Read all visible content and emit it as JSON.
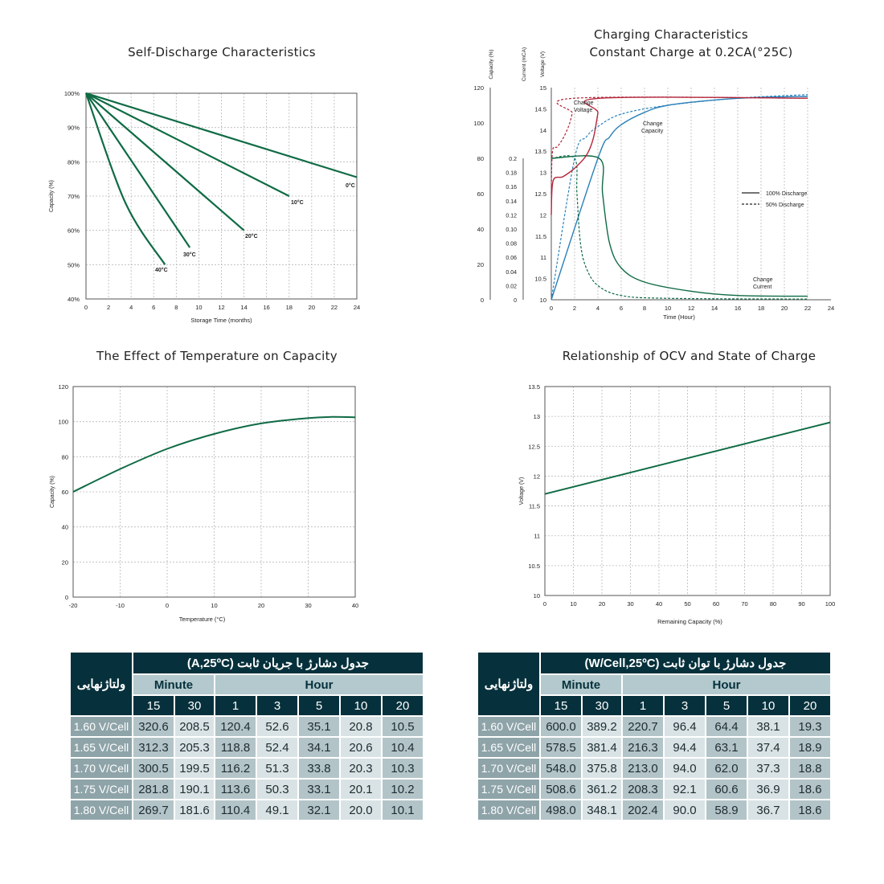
{
  "colors": {
    "green": "#0f6b45",
    "blue": "#2a80b9",
    "red": "#b3263a",
    "navy": "#06313c"
  },
  "charts": [
    {
      "title": "Self-Discharge Characteristics",
      "type": "line",
      "xlabel": "Storage Time (months)",
      "ylabel": "Capacity (%)",
      "xlim": [
        0,
        24
      ],
      "ylim": [
        40,
        100
      ],
      "xticks": [
        "0",
        "2",
        "4",
        "6",
        "8",
        "10",
        "12",
        "14",
        "16",
        "18",
        "20",
        "22",
        "24"
      ],
      "yticks": [
        "40%",
        "50%",
        "60%",
        "70%",
        "80%",
        "90%",
        "100%"
      ],
      "grid": true,
      "series": [
        {
          "name": "0°C",
          "x": [
            0,
            24
          ],
          "y": [
            100,
            75.5
          ]
        },
        {
          "name": "10°C",
          "x": [
            0,
            18
          ],
          "y": [
            100,
            70
          ]
        },
        {
          "name": "20°C",
          "x": [
            0,
            14
          ],
          "y": [
            100,
            60
          ]
        },
        {
          "name": "30°C",
          "x": [
            0,
            9.2
          ],
          "y": [
            100,
            55
          ]
        },
        {
          "name": "40°C",
          "x": [
            0,
            3.5,
            7
          ],
          "y": [
            100,
            68,
            50
          ]
        }
      ]
    },
    {
      "title_line1": "Charging Characteristics",
      "title_line2": "Constant Charge at 0.2CA(°25C)",
      "type": "line",
      "xlabel": "Time (Hour)",
      "axis_capacity_label": "Capacity (%)",
      "axis_current_label": "Current (mCA)",
      "axis_voltage_label": "Voltage (V)",
      "xlim": [
        0,
        24
      ],
      "xticks": [
        "0",
        "2",
        "4",
        "6",
        "8",
        "10",
        "12",
        "14",
        "16",
        "18",
        "20",
        "22",
        "24"
      ],
      "capacity_ticks": [
        "0",
        "20",
        "40",
        "60",
        "80",
        "100",
        "120"
      ],
      "current_ticks": [
        "0",
        "0.02",
        "0.04",
        "0.06",
        "0.08",
        "0.10",
        "0.12",
        "0.14",
        "0.16",
        "0.18",
        "0.2"
      ],
      "voltage_ticks": [
        "10",
        "10.5",
        "11",
        "11.5",
        "12",
        "12.5",
        "13",
        "13.5",
        "14",
        "14.5",
        "15"
      ],
      "legend_solid": "100% Discharge",
      "legend_dashed": "50% Discharge",
      "label_voltage": [
        "Change",
        "Voltage"
      ],
      "label_capacity": [
        "Change",
        "Capacity"
      ],
      "label_current": [
        "Change",
        "Current"
      ],
      "series": {
        "voltage_100": {
          "x": [
            0,
            0.15,
            1,
            2,
            3,
            3.6,
            4,
            4.2,
            22
          ],
          "y": [
            12.0,
            12.8,
            12.9,
            13.1,
            13.4,
            13.8,
            14.4,
            14.75,
            14.75
          ]
        },
        "voltage_50": {
          "x": [
            0,
            0.1,
            0.5,
            1,
            1.5,
            1.8,
            2.0,
            22
          ],
          "y": [
            12.5,
            13.5,
            13.6,
            13.8,
            14.1,
            14.4,
            14.75,
            14.75
          ]
        },
        "capacity_100": {
          "x": [
            0,
            4,
            5,
            6,
            8,
            10,
            14,
            18,
            22
          ],
          "y": [
            0,
            80,
            92,
            99,
            106,
            110,
            113,
            114.5,
            115
          ]
        },
        "capacity_50": {
          "x": [
            0,
            2,
            3,
            4,
            6,
            10,
            16,
            22
          ],
          "y": [
            0,
            80,
            92,
            98,
            105,
            110,
            114,
            116
          ]
        },
        "current_100": {
          "x": [
            0,
            4.1,
            4.4,
            5,
            6,
            8,
            12,
            16,
            22
          ],
          "y": [
            0.2,
            0.2,
            0.15,
            0.08,
            0.045,
            0.025,
            0.012,
            0.006,
            0.005
          ]
        },
        "current_50": {
          "x": [
            0,
            2.0,
            2.2,
            2.5,
            3,
            4,
            6,
            10,
            22
          ],
          "y": [
            0.2,
            0.2,
            0.15,
            0.08,
            0.045,
            0.02,
            0.006,
            0.002,
            0.001
          ]
        }
      }
    },
    {
      "title": "The Effect of Temperature on Capacity",
      "type": "line",
      "xlabel": "Temperature (°C)",
      "ylabel": "Capacity (%)",
      "xlim": [
        -20,
        40
      ],
      "ylim": [
        0,
        120
      ],
      "xticks": [
        "-20",
        "-10",
        "0",
        "10",
        "20",
        "30",
        "40"
      ],
      "yticks": [
        "0",
        "20",
        "40",
        "60",
        "80",
        "100",
        "120"
      ],
      "series": [
        {
          "x": [
            -20,
            -10,
            0,
            10,
            20,
            30,
            35,
            40
          ],
          "y": [
            60,
            73,
            84.5,
            93,
            99,
            102,
            102.7,
            102.5
          ]
        }
      ]
    },
    {
      "title": "Relationship of OCV and State of Charge",
      "type": "line",
      "xlabel": "Remaining Capacity (%)",
      "ylabel": "Voltage (V)",
      "xlim": [
        0,
        100
      ],
      "ylim": [
        10,
        13.5
      ],
      "xticks": [
        "0",
        "10",
        "20",
        "30",
        "40",
        "50",
        "60",
        "70",
        "80",
        "90",
        "100"
      ],
      "yticks": [
        "10",
        "10.5",
        "11",
        "11.5",
        "12",
        "12.5",
        "13",
        "13.5"
      ],
      "series": [
        {
          "x": [
            0,
            100
          ],
          "y": [
            11.7,
            12.9
          ]
        }
      ]
    }
  ],
  "tables": [
    {
      "title": "جدول دشارژ با جریان ثابت  (A,25ºC)",
      "corner": "ولتاژنهایی",
      "group_minute": "Minute",
      "group_hour": "Hour",
      "columns": [
        "15",
        "30",
        "1",
        "3",
        "5",
        "10",
        "20"
      ],
      "rows": [
        {
          "label": "1.60 V/Cell",
          "values": [
            "320.6",
            "208.5",
            "120.4",
            "52.6",
            "35.1",
            "20.8",
            "10.5"
          ]
        },
        {
          "label": "1.65 V/Cell",
          "values": [
            "312.3",
            "205.3",
            "118.8",
            "52.4",
            "34.1",
            "20.6",
            "10.4"
          ]
        },
        {
          "label": "1.70 V/Cell",
          "values": [
            "300.5",
            "199.5",
            "116.2",
            "51.3",
            "33.8",
            "20.3",
            "10.3"
          ]
        },
        {
          "label": "1.75 V/Cell",
          "values": [
            "281.8",
            "190.1",
            "113.6",
            "50.3",
            "33.1",
            "20.1",
            "10.2"
          ]
        },
        {
          "label": "1.80 V/Cell",
          "values": [
            "269.7",
            "181.6",
            "110.4",
            "49.1",
            "32.1",
            "20.0",
            "10.1"
          ]
        }
      ]
    },
    {
      "title": "جدول دشارژ با توان ثابت   (W/Cell,25ºC)",
      "corner": "ولتاژنهایی",
      "group_minute": "Minute",
      "group_hour": "Hour",
      "columns": [
        "15",
        "30",
        "1",
        "3",
        "5",
        "10",
        "20"
      ],
      "rows": [
        {
          "label": "1.60 V/Cell",
          "values": [
            "600.0",
            "389.2",
            "220.7",
            "96.4",
            "64.4",
            "38.1",
            "19.3"
          ]
        },
        {
          "label": "1.65 V/Cell",
          "values": [
            "578.5",
            "381.4",
            "216.3",
            "94.4",
            "63.1",
            "37.4",
            "18.9"
          ]
        },
        {
          "label": "1.70 V/Cell",
          "values": [
            "548.0",
            "375.8",
            "213.0",
            "94.0",
            "62.0",
            "37.3",
            "18.8"
          ]
        },
        {
          "label": "1.75 V/Cell",
          "values": [
            "508.6",
            "361.2",
            "208.3",
            "92.1",
            "60.6",
            "36.9",
            "18.6"
          ]
        },
        {
          "label": "1.80 V/Cell",
          "values": [
            "498.0",
            "348.1",
            "202.4",
            "90.0",
            "58.9",
            "36.7",
            "18.6"
          ]
        }
      ]
    }
  ]
}
